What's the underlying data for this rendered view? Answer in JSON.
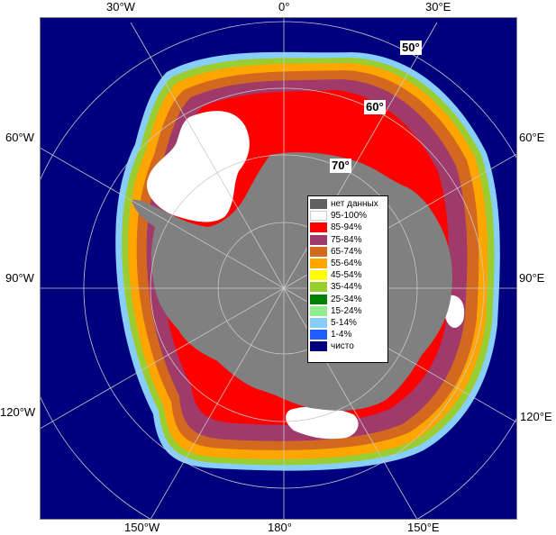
{
  "map": {
    "colors": {
      "ocean": "#00007f",
      "land": "#808080",
      "frame": "#808080",
      "grid": "#c8c8c8"
    },
    "longitude_labels": {
      "w30": "30°W",
      "zero": "0°",
      "e30": "30°E",
      "w60": "60°W",
      "e60": "60°E",
      "w90": "90°W",
      "e90": "90°E",
      "w120": "120°W",
      "e120": "120°E",
      "w150": "150°W",
      "lon180": "180°",
      "e150": "150°E"
    },
    "latitude_labels": {
      "lat50": "50°",
      "lat60": "60°",
      "lat70": "70°"
    }
  },
  "legend": {
    "items": [
      {
        "label": "нет данных",
        "color": "#606060"
      },
      {
        "label": "95-100%",
        "color": "#ffffff"
      },
      {
        "label": "85-94%",
        "color": "#ff0000"
      },
      {
        "label": "75-84%",
        "color": "#a03a6a"
      },
      {
        "label": "65-74%",
        "color": "#d2691e"
      },
      {
        "label": "55-64%",
        "color": "#ffa500"
      },
      {
        "label": "45-54%",
        "color": "#ffff00"
      },
      {
        "label": "35-44%",
        "color": "#9acd32"
      },
      {
        "label": "25-34%",
        "color": "#008000"
      },
      {
        "label": "15-24%",
        "color": "#90ee90"
      },
      {
        "label": "5-14%",
        "color": "#87cefa"
      },
      {
        "label": "1-4%",
        "color": "#1e60ff"
      },
      {
        "label": "чисто",
        "color": "#00007f"
      }
    ]
  }
}
